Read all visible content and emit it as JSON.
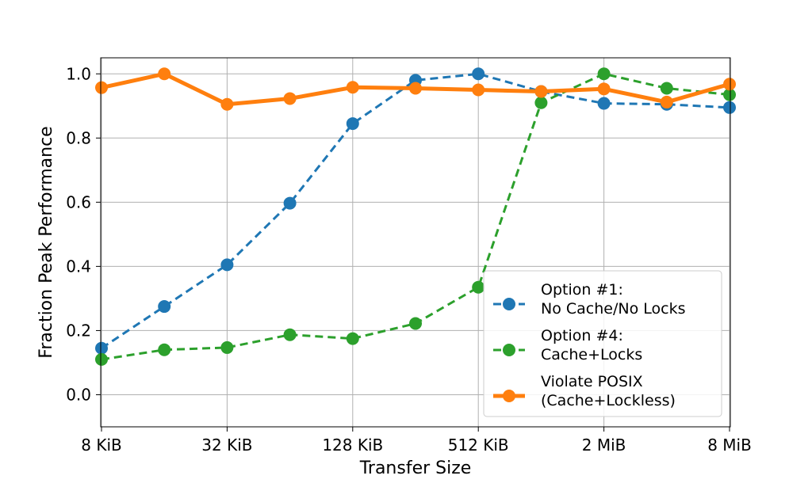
{
  "chart_data": {
    "type": "line",
    "xlabel": "Transfer Size",
    "ylabel": "Fraction Peak Performance",
    "x_tick_labels": [
      "8 KiB",
      "32 KiB",
      "128 KiB",
      "512 KiB",
      "2 MiB",
      "8 MiB"
    ],
    "x_scale": "log2",
    "x_unit": "KiB",
    "x": [
      8,
      16,
      32,
      64,
      128,
      256,
      512,
      1024,
      2048,
      4096,
      8192
    ],
    "ylim": [
      -0.1,
      1.05
    ],
    "y_ticks": [
      0.0,
      0.2,
      0.4,
      0.6,
      0.8,
      1.0
    ],
    "y_tick_labels": [
      "0.0",
      "0.2",
      "0.4",
      "0.6",
      "0.8",
      "1.0"
    ],
    "grid": true,
    "legend_position": "lower-right",
    "series": [
      {
        "name": "Option #1:\nNo Cache/No Locks",
        "color": "#1f77b4",
        "line_style": "dashed",
        "values": [
          0.145,
          0.275,
          0.405,
          0.597,
          0.845,
          0.98,
          1.0,
          0.945,
          0.908,
          0.905,
          0.895
        ]
      },
      {
        "name": "Option #4:\nCache+Locks",
        "color": "#2ca02c",
        "line_style": "dashed",
        "values": [
          0.11,
          0.14,
          0.147,
          0.187,
          0.175,
          0.222,
          0.335,
          0.91,
          1.0,
          0.955,
          0.935
        ]
      },
      {
        "name": "Violate POSIX\n(Cache+Lockless)",
        "color": "#ff7f0e",
        "line_style": "solid",
        "values": [
          0.957,
          1.0,
          0.905,
          0.923,
          0.958,
          0.955,
          0.95,
          0.945,
          0.953,
          0.912,
          0.968
        ]
      }
    ]
  }
}
